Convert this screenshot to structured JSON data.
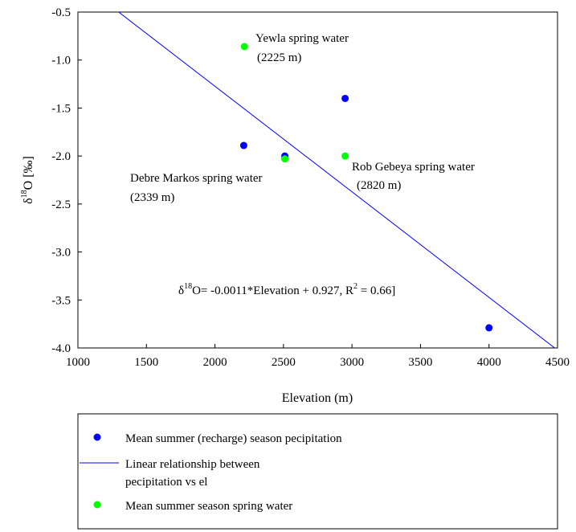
{
  "chart_data": {
    "type": "scatter",
    "xlabel": "Elevation (m)",
    "ylabel": {
      "prefix": "δ",
      "sup": "18",
      "suffix": "O [‰]"
    },
    "xlim": [
      1000,
      4500
    ],
    "ylim": [
      -4.0,
      -0.5
    ],
    "x_ticks": [
      1000,
      1500,
      2000,
      2500,
      3000,
      3500,
      4000,
      4500
    ],
    "y_ticks": [
      -0.5,
      -1.0,
      -1.5,
      -2.0,
      -2.5,
      -3.0,
      -3.5,
      -4.0
    ],
    "y_tick_labels": [
      "-0.5",
      "-1.0",
      "-1.5",
      "-2.0",
      "-2.5",
      "-3.0",
      "-3.5",
      "-4.0"
    ],
    "grid": false,
    "series": [
      {
        "name": "Mean summer (recharge) season pecipitation",
        "kind": "scatter",
        "color": "#0000ff",
        "points": [
          [
            2210,
            -1.89
          ],
          [
            2510,
            -2.0
          ],
          [
            2950,
            -1.4
          ],
          [
            4000,
            -3.79
          ]
        ]
      },
      {
        "name": "Mean summer season spring water",
        "kind": "scatter",
        "color": "#00ff00",
        "points": [
          [
            2215,
            -0.86
          ],
          [
            2510,
            -2.03
          ],
          [
            2950,
            -2.0
          ]
        ]
      },
      {
        "name": "Linear relationship between pecipitation vs el",
        "name_lines": [
          "Linear relationship between",
          "pecipitation vs el"
        ],
        "kind": "line",
        "color": "#0000ff",
        "slope": -0.0011,
        "intercept": 0.927
      }
    ],
    "annotations": [
      {
        "lines": [
          "Yewla spring water",
          "(2225 m)"
        ]
      },
      {
        "lines": [
          "Debre Markos spring water",
          "(2339 m)"
        ]
      },
      {
        "lines": [
          "Rob Gebeya spring water",
          "(2820 m)"
        ]
      }
    ],
    "equation": {
      "prefix": "δ",
      "sup": "18",
      "body": "O= -0.0011*Elevation + 0.927, R",
      "sup2": "2",
      "tail": " = 0.66]"
    },
    "legend_position": "bottom"
  }
}
